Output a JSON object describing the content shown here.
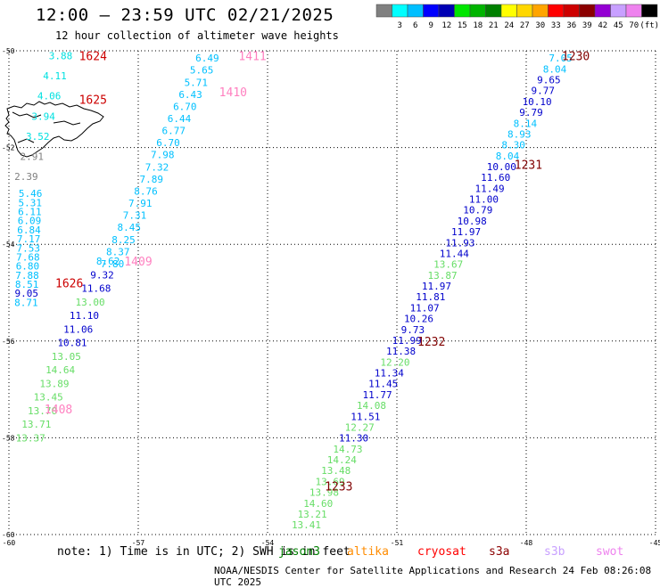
{
  "header": {
    "title": "12:00 – 23:59 UTC 02/21/2025",
    "subtitle": "12 hour collection of altimeter wave heights"
  },
  "colorbar": {
    "colors": [
      "#808080",
      "#00ffff",
      "#00bfff",
      "#0000ff",
      "#0000b4",
      "#00e600",
      "#00b400",
      "#008000",
      "#ffff00",
      "#ffd700",
      "#ffa500",
      "#ff0000",
      "#cd0000",
      "#8b0000",
      "#9400d3",
      "#c8a0ff",
      "#ee82ee",
      "#000000"
    ],
    "labels": [
      "3",
      "6",
      "9",
      "12",
      "15",
      "18",
      "21",
      "24",
      "27",
      "30",
      "33",
      "36",
      "39",
      "42",
      "45",
      "70"
    ],
    "unit": "(ft)"
  },
  "chart_data": {
    "type": "scatter",
    "x_ticks": [
      "-60",
      "-57",
      "-54",
      "-51",
      "-48",
      "-45"
    ],
    "y_ticks": [
      "-50",
      "-52",
      "-54",
      "-56",
      "-58",
      "-60"
    ],
    "xlim": [
      -60,
      -45
    ],
    "ylim": [
      -60,
      -50
    ],
    "grid": true,
    "tracks": [
      {
        "name": "1624-1626",
        "start_lon": -58.8,
        "start_lat": -50.1,
        "end_lon": -59.6,
        "end_lat": -52.6,
        "values": [
          "3.88",
          "4.11",
          "4.06",
          "3.94",
          "3.52",
          "2.91",
          "2.39"
        ],
        "colors": [
          "#00e0e0",
          "#00e0e0",
          "#00e0e0",
          "#00e0e0",
          "#00e0e0",
          "#808080",
          "#808080"
        ]
      },
      {
        "name": "1626-lower",
        "start_lon": -59.5,
        "start_lat": -52.95,
        "end_lon": -59.6,
        "end_lat": -55.2,
        "values": [
          "5.46",
          "5.31",
          "6.11",
          "6.09",
          "6.84",
          "7.17",
          "7.53",
          "7.68",
          "6.80",
          "7.88",
          "8.51",
          "9.05",
          "8.71"
        ],
        "colors": [
          "#00c0ff",
          "#00c0ff",
          "#00c0ff",
          "#00c0ff",
          "#00c0ff",
          "#00c0ff",
          "#00c0ff",
          "#00c0ff",
          "#00c0ff",
          "#00c0ff",
          "#00c0ff",
          "#0000cc",
          "#00c0ff"
        ]
      },
      {
        "name": "1409-1410-1411",
        "start_lon": -55.4,
        "start_lat": -50.15,
        "end_lon": -57.6,
        "end_lat": -54.4,
        "values": [
          "6.49",
          "5.65",
          "5.71",
          "6.43",
          "6.70",
          "6.44",
          "6.77",
          "6.70",
          "7.98",
          "7.32",
          "7.89",
          "8.76",
          "7.91",
          "7.31",
          "8.45",
          "8.25",
          "8.37",
          "7.80"
        ],
        "colors": [
          "#00c0ff",
          "#00c0ff",
          "#00c0ff",
          "#00c0ff",
          "#00c0ff",
          "#00c0ff",
          "#00c0ff",
          "#00c0ff",
          "#00c0ff",
          "#00c0ff",
          "#00c0ff",
          "#00c0ff",
          "#00c0ff",
          "#00c0ff",
          "#00c0ff",
          "#00c0ff",
          "#00c0ff",
          "#00c0ff"
        ]
      },
      {
        "name": "1408",
        "start_lon": -57.7,
        "start_lat": -54.35,
        "end_lon": -59.5,
        "end_lat": -58.0,
        "values": [
          "8.62",
          "9.32",
          "11.68",
          "13.00",
          "11.10",
          "11.06",
          "10.81",
          "13.05",
          "14.64",
          "13.89",
          "13.45",
          "13.70",
          "13.71",
          "13.37"
        ],
        "colors": [
          "#00c0ff",
          "#0000cc",
          "#0000cc",
          "#66dd66",
          "#0000cc",
          "#0000cc",
          "#0000cc",
          "#66dd66",
          "#66dd66",
          "#66dd66",
          "#66dd66",
          "#66dd66",
          "#66dd66",
          "#66dd66"
        ]
      },
      {
        "name": "1230-1233",
        "start_lon": -47.2,
        "start_lat": -50.15,
        "end_lon": -53.1,
        "end_lat": -59.8,
        "values": [
          "7.05",
          "8.04",
          "9.65",
          "9.77",
          "10.10",
          "9.79",
          "8.14",
          "8.93",
          "8.30",
          "8.04",
          "10.00",
          "11.60",
          "11.49",
          "11.00",
          "10.79",
          "10.98",
          "11.97",
          "11.93",
          "11.44",
          "13.67",
          "13.87",
          "11.97",
          "11.81",
          "11.07",
          "10.26",
          "9.73",
          "11.99",
          "11.38",
          "12.20",
          "11.34",
          "11.45",
          "11.77",
          "14.08",
          "11.51",
          "12.27",
          "11.30",
          "14.73",
          "14.24",
          "13.48",
          "13.69",
          "13.98",
          "14.60",
          "13.21",
          "13.41"
        ],
        "colors": [
          "#00c0ff",
          "#00c0ff",
          "#0000cc",
          "#0000cc",
          "#0000cc",
          "#0000cc",
          "#00c0ff",
          "#00c0ff",
          "#00c0ff",
          "#00c0ff",
          "#0000cc",
          "#0000cc",
          "#0000cc",
          "#0000cc",
          "#0000cc",
          "#0000cc",
          "#0000cc",
          "#0000cc",
          "#0000cc",
          "#66dd66",
          "#66dd66",
          "#0000cc",
          "#0000cc",
          "#0000cc",
          "#0000cc",
          "#0000cc",
          "#0000cc",
          "#0000cc",
          "#66dd66",
          "#0000cc",
          "#0000cc",
          "#0000cc",
          "#66dd66",
          "#0000cc",
          "#66dd66",
          "#0000cc",
          "#66dd66",
          "#66dd66",
          "#66dd66",
          "#66dd66",
          "#66dd66",
          "#66dd66",
          "#66dd66",
          "#66dd66"
        ]
      }
    ],
    "time_labels": [
      {
        "text": "1624",
        "lon": -58.05,
        "lat": -50.1,
        "color": "#cc0000"
      },
      {
        "text": "1625",
        "lon": -58.05,
        "lat": -51.0,
        "color": "#cc0000"
      },
      {
        "text": "1626",
        "lon": -58.6,
        "lat": -54.8,
        "color": "#cc0000"
      },
      {
        "text": "1411",
        "lon": -54.35,
        "lat": -50.1,
        "color": "#ff80c0"
      },
      {
        "text": "1410",
        "lon": -54.8,
        "lat": -50.85,
        "color": "#ff80c0"
      },
      {
        "text": "1409",
        "lon": -57.0,
        "lat": -54.35,
        "color": "#ff80c0"
      },
      {
        "text": "1408",
        "lon": -58.85,
        "lat": -57.4,
        "color": "#ff80c0"
      },
      {
        "text": "1230",
        "lon": -46.85,
        "lat": -50.1,
        "color": "#800000"
      },
      {
        "text": "1231",
        "lon": -47.95,
        "lat": -52.35,
        "color": "#800000"
      },
      {
        "text": "1232",
        "lon": -50.2,
        "lat": -56.0,
        "color": "#800000"
      },
      {
        "text": "1233",
        "lon": -52.35,
        "lat": -59.0,
        "color": "#800000"
      }
    ]
  },
  "footer": {
    "note": "note:  1) Time is in UTC; 2) SWH is in feet",
    "satellites": [
      {
        "name": "jason3",
        "color": "#008000"
      },
      {
        "name": "altika",
        "color": "#ff8c00"
      },
      {
        "name": "cryosat",
        "color": "#ff0000"
      },
      {
        "name": "s3a",
        "color": "#8b0000"
      },
      {
        "name": "s3b",
        "color": "#c8a0ff"
      },
      {
        "name": "swot",
        "color": "#ee82ee"
      }
    ],
    "credit": "NOAA/NESDIS Center for Satellite Applications and Research    24 Feb 08:26:08 UTC 2025"
  }
}
